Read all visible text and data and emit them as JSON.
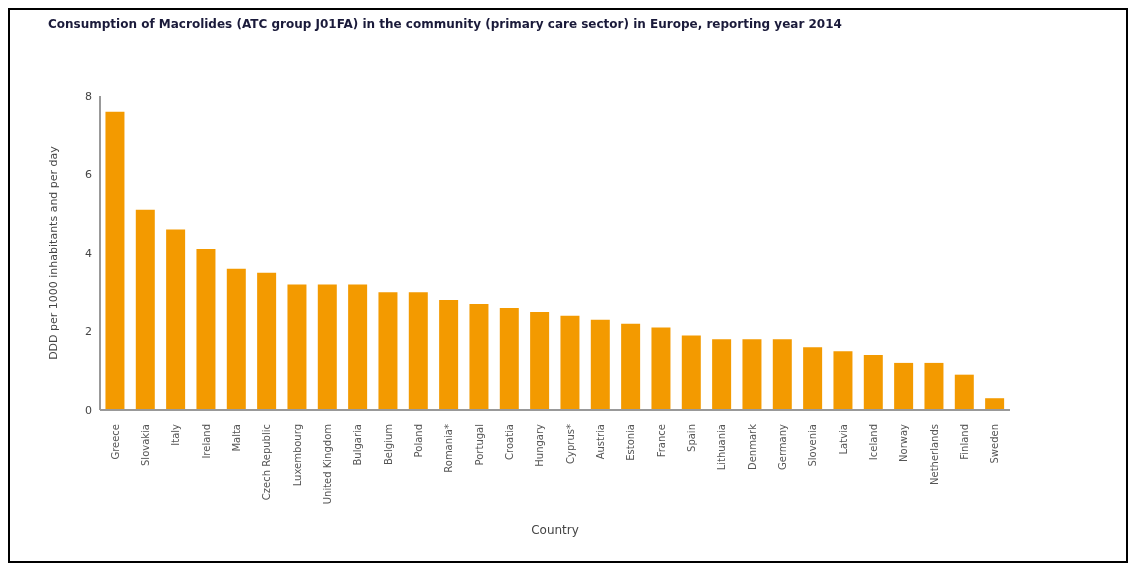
{
  "chart_data": {
    "type": "bar",
    "title": "Consumption of Macrolides (ATC group J01FA) in the community (primary care sector) in Europe, reporting year 2014",
    "xlabel": "Country",
    "ylabel": "DDD per 1000 inhabitants and per day",
    "categories": [
      "Greece",
      "Slovakia",
      "Italy",
      "Ireland",
      "Malta",
      "Czech Republic",
      "Luxembourg",
      "United Kingdom",
      "Bulgaria",
      "Belgium",
      "Poland",
      "Romania*",
      "Portugal",
      "Croatia",
      "Hungary",
      "Cyprus*",
      "Austria",
      "Estonia",
      "France",
      "Spain",
      "Lithuania",
      "Denmark",
      "Germany",
      "Slovenia",
      "Latvia",
      "Iceland",
      "Norway",
      "Netherlands",
      "Finland",
      "Sweden"
    ],
    "values": [
      7.6,
      5.1,
      4.6,
      4.1,
      3.6,
      3.5,
      3.2,
      3.2,
      3.2,
      3.0,
      3.0,
      2.8,
      2.7,
      2.6,
      2.5,
      2.4,
      2.3,
      2.2,
      2.1,
      1.9,
      1.8,
      1.8,
      1.8,
      1.6,
      1.5,
      1.4,
      1.2,
      1.2,
      0.9,
      0.3
    ],
    "color": "#f39a00",
    "ylim": [
      0,
      8
    ],
    "yticks": [
      0,
      2,
      4,
      6,
      8
    ],
    "grid": false,
    "legend": false
  }
}
